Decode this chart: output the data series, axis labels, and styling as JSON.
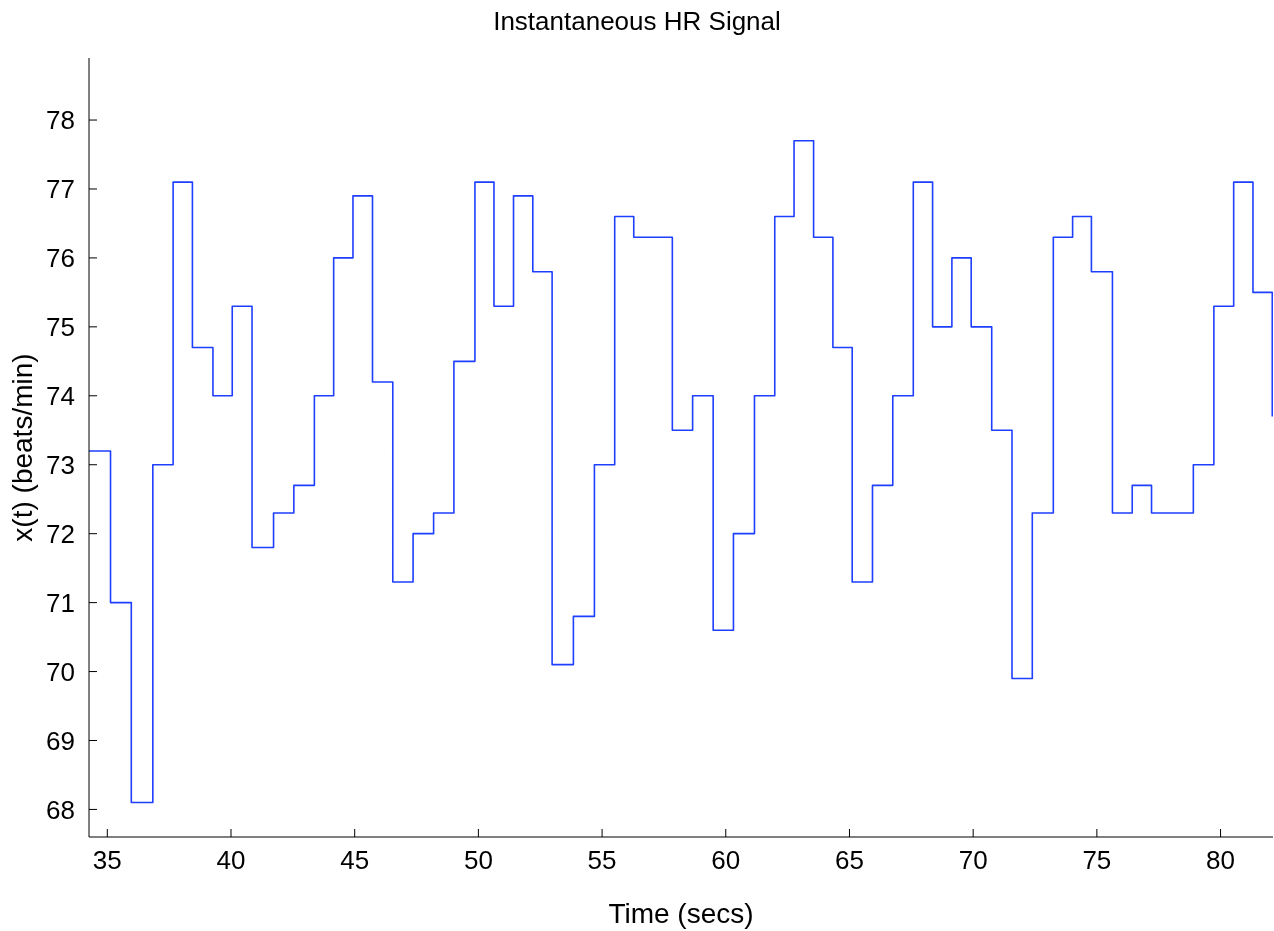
{
  "chart_data": {
    "type": "step",
    "title": "Instantaneous HR Signal",
    "xlabel": "Time (secs)",
    "ylabel": "x(t)  (beats/min)",
    "xlim": [
      34.26,
      82.12
    ],
    "ylim": [
      67.6,
      78.9
    ],
    "xticks": [
      35,
      40,
      45,
      50,
      55,
      60,
      65,
      70,
      75,
      80
    ],
    "yticks": [
      68,
      69,
      70,
      71,
      72,
      73,
      74,
      75,
      76,
      77,
      78
    ],
    "grid": false,
    "legend": false,
    "series": [
      {
        "color": "#1f3fff",
        "x": [
          34.26,
          35.13,
          35.97,
          36.84,
          37.66,
          38.44,
          39.27,
          40.05,
          40.85,
          41.72,
          42.54,
          43.37,
          44.15,
          44.93,
          45.72,
          46.54,
          47.36,
          48.19,
          49.01,
          49.86,
          50.63,
          51.42,
          52.2,
          52.98,
          53.84,
          54.69,
          55.51,
          56.28,
          57.84,
          58.66,
          59.49,
          60.31,
          61.16,
          61.98,
          62.76,
          63.55,
          64.33,
          65.11,
          65.93,
          66.75,
          67.58,
          68.36,
          69.14,
          69.92,
          70.75,
          71.57,
          72.39,
          73.24,
          74.02,
          74.78,
          75.63,
          76.43,
          77.21,
          78.9,
          79.73,
          80.53,
          81.31,
          82.09
        ],
        "values": [
          73.2,
          71.0,
          68.1,
          73.0,
          77.1,
          74.7,
          74.0,
          75.3,
          71.8,
          72.3,
          72.7,
          74.0,
          76.0,
          76.9,
          74.2,
          71.3,
          72.0,
          72.3,
          74.5,
          77.1,
          75.3,
          76.9,
          75.8,
          70.1,
          70.8,
          73.0,
          76.6,
          76.3,
          73.5,
          74.0,
          70.6,
          72.0,
          74.0,
          76.6,
          77.7,
          76.3,
          74.7,
          71.3,
          72.7,
          74.0,
          77.1,
          75.0,
          76.0,
          75.0,
          73.5,
          69.9,
          72.3,
          76.3,
          76.6,
          75.8,
          72.3,
          72.7,
          72.3,
          73.0,
          75.3,
          77.1,
          75.5,
          73.7
        ]
      }
    ]
  }
}
